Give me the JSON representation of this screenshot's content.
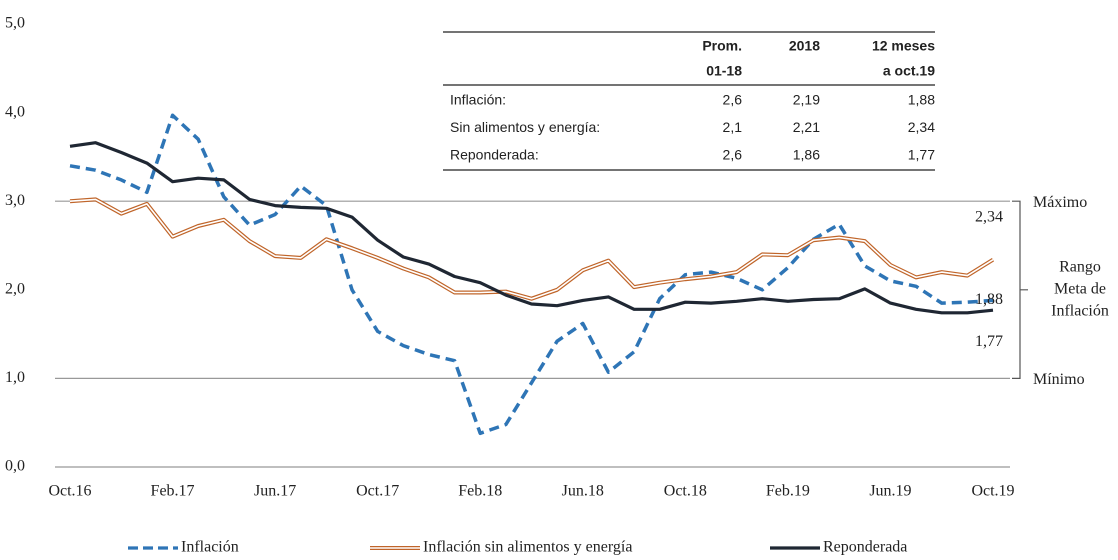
{
  "chart_data": {
    "type": "line",
    "categories": [
      "Oct.16",
      null,
      null,
      null,
      "Feb.17",
      null,
      null,
      null,
      "Jun.17",
      null,
      null,
      null,
      "Oct.17",
      null,
      null,
      null,
      "Feb.18",
      null,
      null,
      null,
      "Jun.18",
      null,
      null,
      null,
      "Oct.18",
      null,
      null,
      null,
      "Feb.19",
      null,
      null,
      null,
      "Jun.19",
      null,
      null,
      null,
      "Oct.19"
    ],
    "series": [
      {
        "name": "Inflación",
        "color": "#2e75b6",
        "style": "dashed",
        "values": [
          3.4,
          3.35,
          3.24,
          3.1,
          3.97,
          3.7,
          3.05,
          2.73,
          2.85,
          3.17,
          2.95,
          2.0,
          1.53,
          1.37,
          1.27,
          1.2,
          0.38,
          0.48,
          0.95,
          1.42,
          1.62,
          1.07,
          1.3,
          1.9,
          2.17,
          2.2,
          2.13,
          2.0,
          2.25,
          2.57,
          2.74,
          2.27,
          2.1,
          2.04,
          1.85,
          1.86,
          1.88
        ],
        "value_labels": [
          null,
          null,
          null,
          null,
          null,
          null,
          null,
          null,
          null,
          null,
          null,
          null,
          null,
          null,
          null,
          null,
          null,
          null,
          null,
          null,
          null,
          null,
          null,
          null,
          null,
          null,
          null,
          null,
          null,
          null,
          null,
          null,
          null,
          null,
          null,
          null,
          "1,88"
        ]
      },
      {
        "name": "Inflación sin alimentos y energía",
        "color": "#c0652a",
        "style": "double",
        "values": [
          3.0,
          3.02,
          2.86,
          2.97,
          2.6,
          2.72,
          2.79,
          2.55,
          2.38,
          2.36,
          2.57,
          2.47,
          2.36,
          2.24,
          2.14,
          1.97,
          1.97,
          1.98,
          1.9,
          2.0,
          2.22,
          2.33,
          2.03,
          2.08,
          2.12,
          2.15,
          2.2,
          2.4,
          2.39,
          2.56,
          2.59,
          2.55,
          2.28,
          2.14,
          2.2,
          2.16,
          2.34
        ],
        "value_labels": [
          null,
          null,
          null,
          null,
          null,
          null,
          null,
          null,
          null,
          null,
          null,
          null,
          null,
          null,
          null,
          null,
          null,
          null,
          null,
          null,
          null,
          null,
          null,
          null,
          null,
          null,
          null,
          null,
          null,
          null,
          null,
          null,
          null,
          null,
          null,
          null,
          "2,34"
        ]
      },
      {
        "name": "Reponderada",
        "color": "#1f2733",
        "style": "solid",
        "values": [
          3.62,
          3.66,
          3.55,
          3.43,
          3.22,
          3.26,
          3.24,
          3.02,
          2.95,
          2.93,
          2.92,
          2.82,
          2.56,
          2.37,
          2.29,
          2.15,
          2.08,
          1.94,
          1.84,
          1.82,
          1.88,
          1.92,
          1.78,
          1.78,
          1.86,
          1.85,
          1.87,
          1.9,
          1.87,
          1.89,
          1.9,
          2.01,
          1.85,
          1.78,
          1.74,
          1.74,
          1.77
        ],
        "value_labels": [
          null,
          null,
          null,
          null,
          null,
          null,
          null,
          null,
          null,
          null,
          null,
          null,
          null,
          null,
          null,
          null,
          null,
          null,
          null,
          null,
          null,
          null,
          null,
          null,
          null,
          null,
          null,
          null,
          null,
          null,
          null,
          null,
          null,
          null,
          null,
          null,
          "1,77"
        ]
      }
    ],
    "ylim": [
      0,
      5
    ],
    "yticks": [
      {
        "value": 0,
        "label": "0,0"
      },
      {
        "value": 1,
        "label": "1,0"
      },
      {
        "value": 2,
        "label": "2,0"
      },
      {
        "value": 3,
        "label": "3,0"
      },
      {
        "value": 4,
        "label": "4,0"
      },
      {
        "value": 5,
        "label": "5,0"
      }
    ],
    "reference_lines": [
      3,
      1
    ],
    "annotations": {
      "max": "Máximo",
      "min": "Mínimo",
      "range": [
        "Rango",
        "Meta de",
        "Inflación"
      ]
    },
    "legend": "bottom",
    "table": {
      "columns": [
        [
          "Prom.",
          "01-18"
        ],
        [
          "2018"
        ],
        [
          "12 meses",
          "a oct.19"
        ]
      ],
      "rows": [
        [
          "Inflación:",
          "2,6",
          "2,19",
          "1,88"
        ],
        [
          "Sin alimentos y energía:",
          "2,1",
          "2,21",
          "2,34"
        ],
        [
          "Reponderada:",
          "2,6",
          "1,86",
          "1,77"
        ]
      ]
    }
  }
}
